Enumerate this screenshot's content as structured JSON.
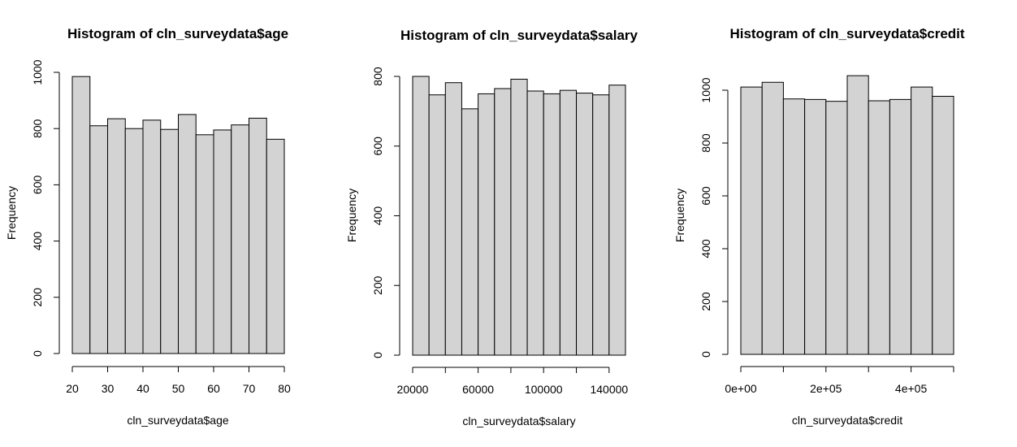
{
  "colors": {
    "bar_fill": "#d3d3d3",
    "bar_stroke": "#000000",
    "background": "#ffffff"
  },
  "chart_data": [
    {
      "type": "bar",
      "title": "Histogram of cln_surveydata$age",
      "xlabel": "cln_surveydata$age",
      "ylabel": "Frequency",
      "bin_edges": [
        20,
        25,
        30,
        35,
        40,
        45,
        50,
        55,
        60,
        65,
        70,
        75,
        80
      ],
      "values": [
        985,
        810,
        835,
        800,
        830,
        797,
        850,
        778,
        795,
        813,
        837,
        762
      ],
      "xlim": [
        20,
        80
      ],
      "ylim": [
        0,
        1000
      ],
      "x_ticks": [
        20,
        30,
        40,
        50,
        60,
        70,
        80
      ],
      "x_tick_labels": [
        "20",
        "30",
        "40",
        "50",
        "60",
        "70",
        "80"
      ],
      "y_ticks": [
        0,
        200,
        400,
        600,
        800,
        1000
      ],
      "y_tick_labels": [
        "0",
        "200",
        "400",
        "600",
        "800",
        "1000"
      ],
      "grid": false
    },
    {
      "type": "bar",
      "title": "Histogram of cln_surveydata$salary",
      "xlabel": "cln_surveydata$salary",
      "ylabel": "Frequency",
      "bin_edges": [
        20000,
        30000,
        40000,
        50000,
        60000,
        70000,
        80000,
        90000,
        100000,
        110000,
        120000,
        130000,
        140000,
        150000
      ],
      "values": [
        800,
        747,
        782,
        707,
        750,
        765,
        792,
        758,
        750,
        760,
        752,
        747,
        775
      ],
      "xlim": [
        20000,
        150000
      ],
      "ylim": [
        0,
        800
      ],
      "x_ticks": [
        20000,
        40000,
        60000,
        80000,
        100000,
        120000,
        140000
      ],
      "x_tick_labels": [
        "20000",
        "",
        "60000",
        "",
        "100000",
        "",
        "140000"
      ],
      "y_ticks": [
        0,
        200,
        400,
        600,
        800
      ],
      "y_tick_labels": [
        "0",
        "200",
        "400",
        "600",
        "800"
      ],
      "grid": false
    },
    {
      "type": "bar",
      "title": "Histogram of cln_surveydata$credit",
      "xlabel": "cln_surveydata$credit",
      "ylabel": "Frequency",
      "bin_edges": [
        0,
        50000,
        100000,
        150000,
        200000,
        250000,
        300000,
        350000,
        400000,
        450000,
        500000
      ],
      "values": [
        1012,
        1030,
        967,
        965,
        958,
        1055,
        960,
        965,
        1012,
        977
      ],
      "xlim": [
        0,
        500000
      ],
      "ylim": [
        0,
        1000
      ],
      "x_ticks": [
        0,
        100000,
        200000,
        300000,
        400000,
        500000
      ],
      "x_tick_labels": [
        "0e+00",
        "",
        "2e+05",
        "",
        "4e+05",
        ""
      ],
      "y_ticks": [
        0,
        200,
        400,
        600,
        800,
        1000
      ],
      "y_tick_labels": [
        "0",
        "200",
        "400",
        "600",
        "800",
        "1000"
      ],
      "grid": false
    }
  ]
}
